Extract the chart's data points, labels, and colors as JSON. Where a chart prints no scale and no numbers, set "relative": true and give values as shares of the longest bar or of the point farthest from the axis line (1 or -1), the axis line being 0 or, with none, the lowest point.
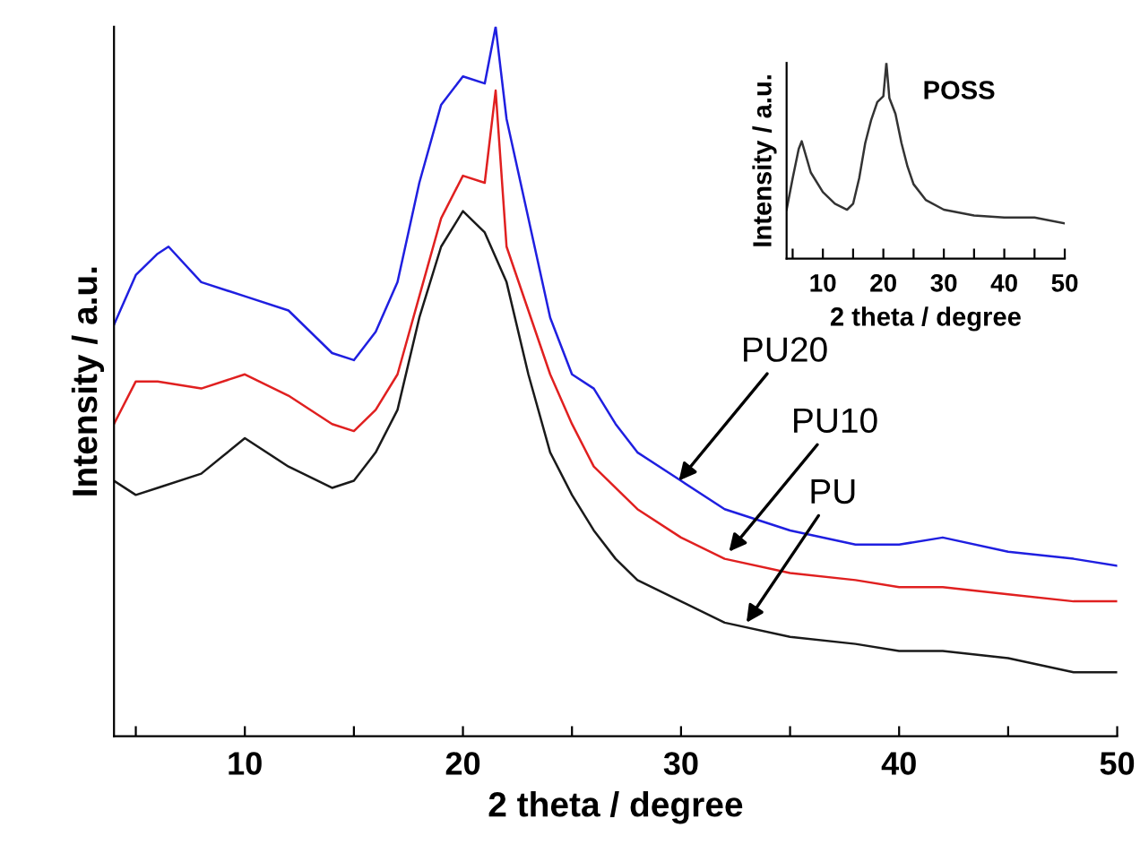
{
  "chart_data": [
    {
      "type": "line",
      "relative": true,
      "xlabel": "2 theta / degree",
      "ylabel": "Intensity / a.u.",
      "xlim": [
        4,
        50
      ],
      "xticks": [
        {
          "value": 5,
          "label": null
        },
        10,
        {
          "value": 15,
          "label": null
        },
        20,
        {
          "value": 25,
          "label": null
        },
        30,
        {
          "value": 35,
          "label": null
        },
        40,
        {
          "value": 45,
          "label": null
        },
        50
      ],
      "tick_labels": "x",
      "grid": false,
      "legend": false,
      "marker": "none",
      "line_style": "solid",
      "series": [
        {
          "color": "#1f1fe0",
          "x": [
            4,
            5,
            6,
            6.5,
            8,
            10,
            12,
            14,
            15,
            16,
            17,
            18,
            19,
            20,
            21,
            21.5,
            22,
            23,
            24,
            25,
            26,
            27,
            28,
            30,
            32,
            35,
            38,
            40,
            42,
            45,
            48,
            50
          ],
          "values": [
            0.58,
            0.65,
            0.68,
            0.69,
            0.64,
            0.62,
            0.6,
            0.54,
            0.53,
            0.57,
            0.64,
            0.78,
            0.89,
            0.93,
            0.92,
            1,
            0.87,
            0.73,
            0.59,
            0.51,
            0.49,
            0.44,
            0.4,
            0.36,
            0.32,
            0.29,
            0.27,
            0.27,
            0.28,
            0.26,
            0.25,
            0.24
          ]
        },
        {
          "color": "#e02020",
          "x": [
            4,
            5,
            6,
            8,
            10,
            12,
            14,
            15,
            16,
            17,
            18,
            19,
            20,
            21,
            21.5,
            22,
            23,
            24,
            25,
            26,
            27,
            28,
            30,
            32,
            35,
            38,
            40,
            42,
            45,
            48,
            50
          ],
          "values": [
            0.44,
            0.5,
            0.5,
            0.49,
            0.51,
            0.48,
            0.44,
            0.43,
            0.46,
            0.51,
            0.62,
            0.73,
            0.79,
            0.78,
            0.91,
            0.69,
            0.6,
            0.51,
            0.44,
            0.38,
            0.35,
            0.32,
            0.28,
            0.25,
            0.23,
            0.22,
            0.21,
            0.21,
            0.2,
            0.19,
            0.19
          ]
        },
        {
          "color": "#1a1a1a",
          "x": [
            4,
            5,
            6,
            8,
            10,
            12,
            14,
            15,
            16,
            17,
            18,
            19,
            20,
            21,
            22,
            23,
            24,
            25,
            26,
            27,
            28,
            30,
            32,
            35,
            38,
            40,
            42,
            45,
            48,
            50
          ],
          "values": [
            0.36,
            0.34,
            0.35,
            0.37,
            0.42,
            0.38,
            0.35,
            0.36,
            0.4,
            0.46,
            0.59,
            0.69,
            0.74,
            0.71,
            0.64,
            0.51,
            0.4,
            0.34,
            0.29,
            0.25,
            0.22,
            0.19,
            0.16,
            0.14,
            0.13,
            0.12,
            0.12,
            0.11,
            0.09,
            0.09
          ]
        }
      ],
      "annotations": [
        {
          "text": "PU20",
          "x": 29.9,
          "y": 0.36
        },
        {
          "text": "PU10",
          "x": 32.2,
          "y": 0.26
        },
        {
          "text": "PU",
          "x": 33,
          "y": 0.16
        }
      ]
    },
    {
      "type": "line",
      "relative": true,
      "xlabel": "2 theta / degree",
      "ylabel": "Intensity / a.u.",
      "xlim": [
        4,
        50
      ],
      "xticks": [
        {
          "value": 5,
          "label": null
        },
        10,
        {
          "value": 15,
          "label": null
        },
        20,
        {
          "value": 25,
          "label": null
        },
        30,
        {
          "value": 35,
          "label": null
        },
        40,
        {
          "value": 45,
          "label": null
        },
        50
      ],
      "tick_labels": "x",
      "grid": false,
      "legend": false,
      "marker": "none",
      "line_style": "solid",
      "series": [
        {
          "name": "POSS",
          "color": "#333333",
          "x": [
            4,
            5,
            6,
            6.5,
            8,
            10,
            12,
            14,
            15,
            16,
            17,
            18,
            19,
            20,
            20.5,
            21,
            22,
            23,
            24,
            25,
            27,
            30,
            35,
            40,
            45,
            50
          ],
          "values": [
            0.25,
            0.41,
            0.56,
            0.6,
            0.44,
            0.34,
            0.28,
            0.25,
            0.28,
            0.41,
            0.59,
            0.71,
            0.8,
            0.83,
            1,
            0.82,
            0.74,
            0.59,
            0.47,
            0.38,
            0.3,
            0.25,
            0.22,
            0.21,
            0.21,
            0.18
          ]
        }
      ]
    }
  ]
}
